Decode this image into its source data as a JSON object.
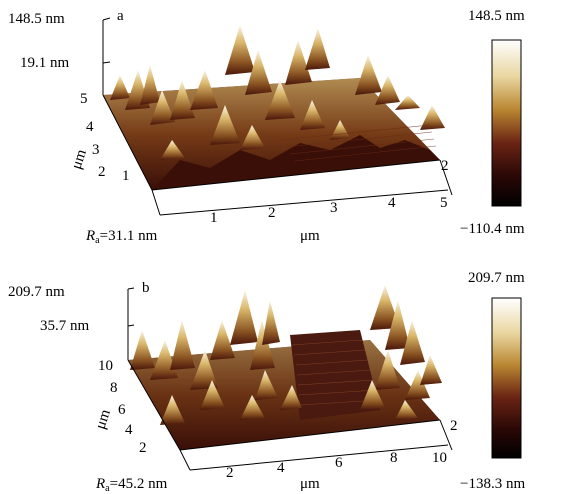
{
  "figure": {
    "panels": [
      {
        "id": "a",
        "letter": "a",
        "z_max_label": "148.5 nm",
        "z_mid_label": "19.1 nm",
        "colorbar_max": "148.5 nm",
        "colorbar_min": "−110.4 nm",
        "x_ticks": [
          "1",
          "2",
          "3",
          "4",
          "5"
        ],
        "x_unit": "μm",
        "y_ticks": [
          "1",
          "2",
          "3",
          "4",
          "5"
        ],
        "y_unit": "μm",
        "depth_tick": "2",
        "ra_symbol": "R",
        "ra_sub": "a",
        "ra_value": "=31.1 nm"
      },
      {
        "id": "b",
        "letter": "b",
        "z_max_label": "209.7 nm",
        "z_mid_label": "35.7 nm",
        "colorbar_max": "209.7 nm",
        "colorbar_min": "−138.3 nm",
        "x_ticks": [
          "2",
          "4",
          "6",
          "8",
          "10"
        ],
        "x_unit": "μm",
        "y_ticks": [
          "2",
          "4",
          "6",
          "8",
          "10"
        ],
        "y_unit": "μm",
        "depth_tick": "2",
        "ra_symbol": "R",
        "ra_sub": "a",
        "ra_value": "=45.2 nm"
      }
    ],
    "colors": {
      "surface_dark": "#2a0806",
      "surface_mid": "#7a2a12",
      "surface_gold": "#b8862e",
      "surface_light": "#f2ead2"
    }
  }
}
